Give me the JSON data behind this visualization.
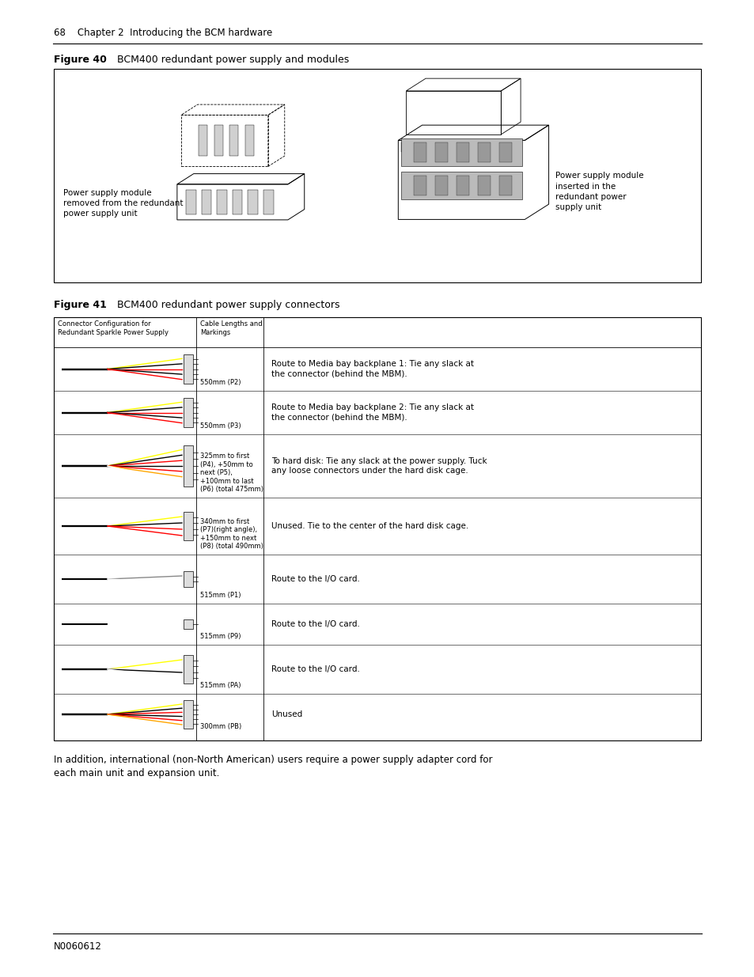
{
  "bg_color": "#ffffff",
  "page_width": 9.54,
  "page_height": 12.35,
  "header_text": "68    Chapter 2  Introducing the BCM hardware",
  "footer_text": "N0060612",
  "fig40_label": "Figure 40",
  "fig40_title": "  BCM400 redundant power supply and modules",
  "fig40_caption_left": "Power supply module\nremoved from the redundant\npower supply unit",
  "fig40_caption_right": "Power supply module\ninserted in the\nredundant power\nsupply unit",
  "fig41_label": "Figure 41",
  "fig41_title": "  BCM400 redundant power supply connectors",
  "table_col1_header": "Connector Configuration for\nRedundant Sparkle Power Supply",
  "table_col2_header": "Cable Lengths and\nMarkings",
  "table_rows": [
    {
      "cable_label": "550mm (P2)",
      "description": "Route to Media bay backplane 1: Tie any slack at\nthe connector (behind the MBM).",
      "colors": [
        "yellow",
        "black",
        "black",
        "red",
        "red"
      ]
    },
    {
      "cable_label": "550mm (P3)",
      "description": "Route to Media bay backplane 2: Tie any slack at\nthe connector (behind the MBM).",
      "colors": [
        "yellow",
        "black",
        "black",
        "red",
        "red"
      ]
    },
    {
      "cable_label": "325mm to first\n(P4), +50mm to\nnext (P5),\n+100mm to last\n(P6) (total 475mm)",
      "description": "To hard disk: Tie any slack at the power supply. Tuck\nany loose connectors under the hard disk cage.",
      "colors": [
        "yellow",
        "black",
        "black",
        "red",
        "red",
        "orange",
        "white"
      ]
    },
    {
      "cable_label": "340mm to first\n(P7)(right angle),\n+150mm to next\n(P8) (total 490mm)",
      "description": "Unused. Tie to the center of the hard disk cage.",
      "colors": [
        "yellow",
        "black",
        "red",
        "red"
      ]
    },
    {
      "cable_label": "515mm (P1)",
      "description": "Route to the I/O card.",
      "colors": [
        "gray"
      ]
    },
    {
      "cable_label": "515mm (P9)",
      "description": "Route to the I/O card.",
      "colors": [
        "white"
      ]
    },
    {
      "cable_label": "515mm (PA)",
      "description": "Route to the I/O card.",
      "colors": [
        "yellow",
        "white",
        "white",
        "black"
      ]
    },
    {
      "cable_label": "300mm (PB)",
      "description": "Unused",
      "colors": [
        "yellow",
        "black",
        "black",
        "red",
        "red",
        "orange"
      ]
    }
  ],
  "bottom_text": "In addition, international (non-North American) users require a power supply adapter cord for\neach main unit and expansion unit."
}
